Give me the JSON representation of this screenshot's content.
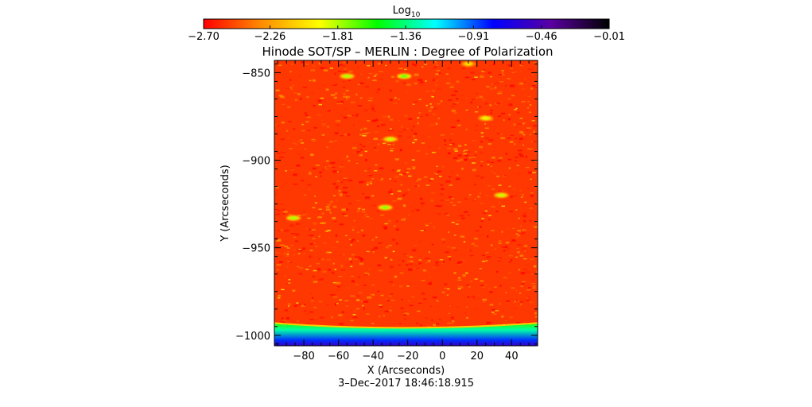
{
  "chart_data": {
    "type": "heatmap",
    "title": "Hinode SOT/SP – MERLIN : Degree of Polarization",
    "xlabel": "X (Arcseconds)",
    "ylabel": "Y (Arcseconds)",
    "timestamp": "3–Dec–2017 18:46:18.915",
    "xlim": [
      -97,
      55
    ],
    "ylim": [
      -1006,
      -843
    ],
    "x_ticks": [
      -80,
      -60,
      -40,
      -20,
      0,
      20,
      40
    ],
    "x_tick_labels": [
      "−80",
      "−60",
      "−40",
      "−20",
      "0",
      "20",
      "40"
    ],
    "y_ticks": [
      -850,
      -900,
      -950,
      -1000
    ],
    "y_tick_labels": [
      "−850",
      "−900",
      "−950",
      "−1000"
    ],
    "colorbar": {
      "label_base": "Log",
      "label_sub": "10",
      "range": [
        -2.7,
        -0.01
      ],
      "ticks": [
        -2.7,
        -2.26,
        -1.81,
        -1.36,
        -0.91,
        -0.46,
        -0.01
      ],
      "tick_labels": [
        "−2.70",
        "−2.26",
        "−1.81",
        "−1.36",
        "−0.91",
        "−0.46",
        "−0.01"
      ],
      "colormap": [
        "#ff0000",
        "#ff8c00",
        "#ffff00",
        "#00ff00",
        "#00ffff",
        "#0000ff",
        "#5a00a0",
        "#000000"
      ]
    },
    "field": {
      "background_value": -2.55,
      "limb_band_y_range": [
        -1006,
        -993
      ],
      "limb_band_value": -1.3,
      "limb_edge_value": -1.6,
      "patches": [
        {
          "x": -55,
          "y": -852,
          "value": -1.8
        },
        {
          "x": -22,
          "y": -852,
          "value": -1.7
        },
        {
          "x": -30,
          "y": -888,
          "value": -1.85
        },
        {
          "x": -33,
          "y": -927,
          "value": -1.75
        },
        {
          "x": 25,
          "y": -876,
          "value": -1.9
        },
        {
          "x": 34,
          "y": -920,
          "value": -1.85
        },
        {
          "x": -86,
          "y": -933,
          "value": -1.8
        },
        {
          "x": 15,
          "y": -845,
          "value": -2.0
        }
      ]
    }
  }
}
